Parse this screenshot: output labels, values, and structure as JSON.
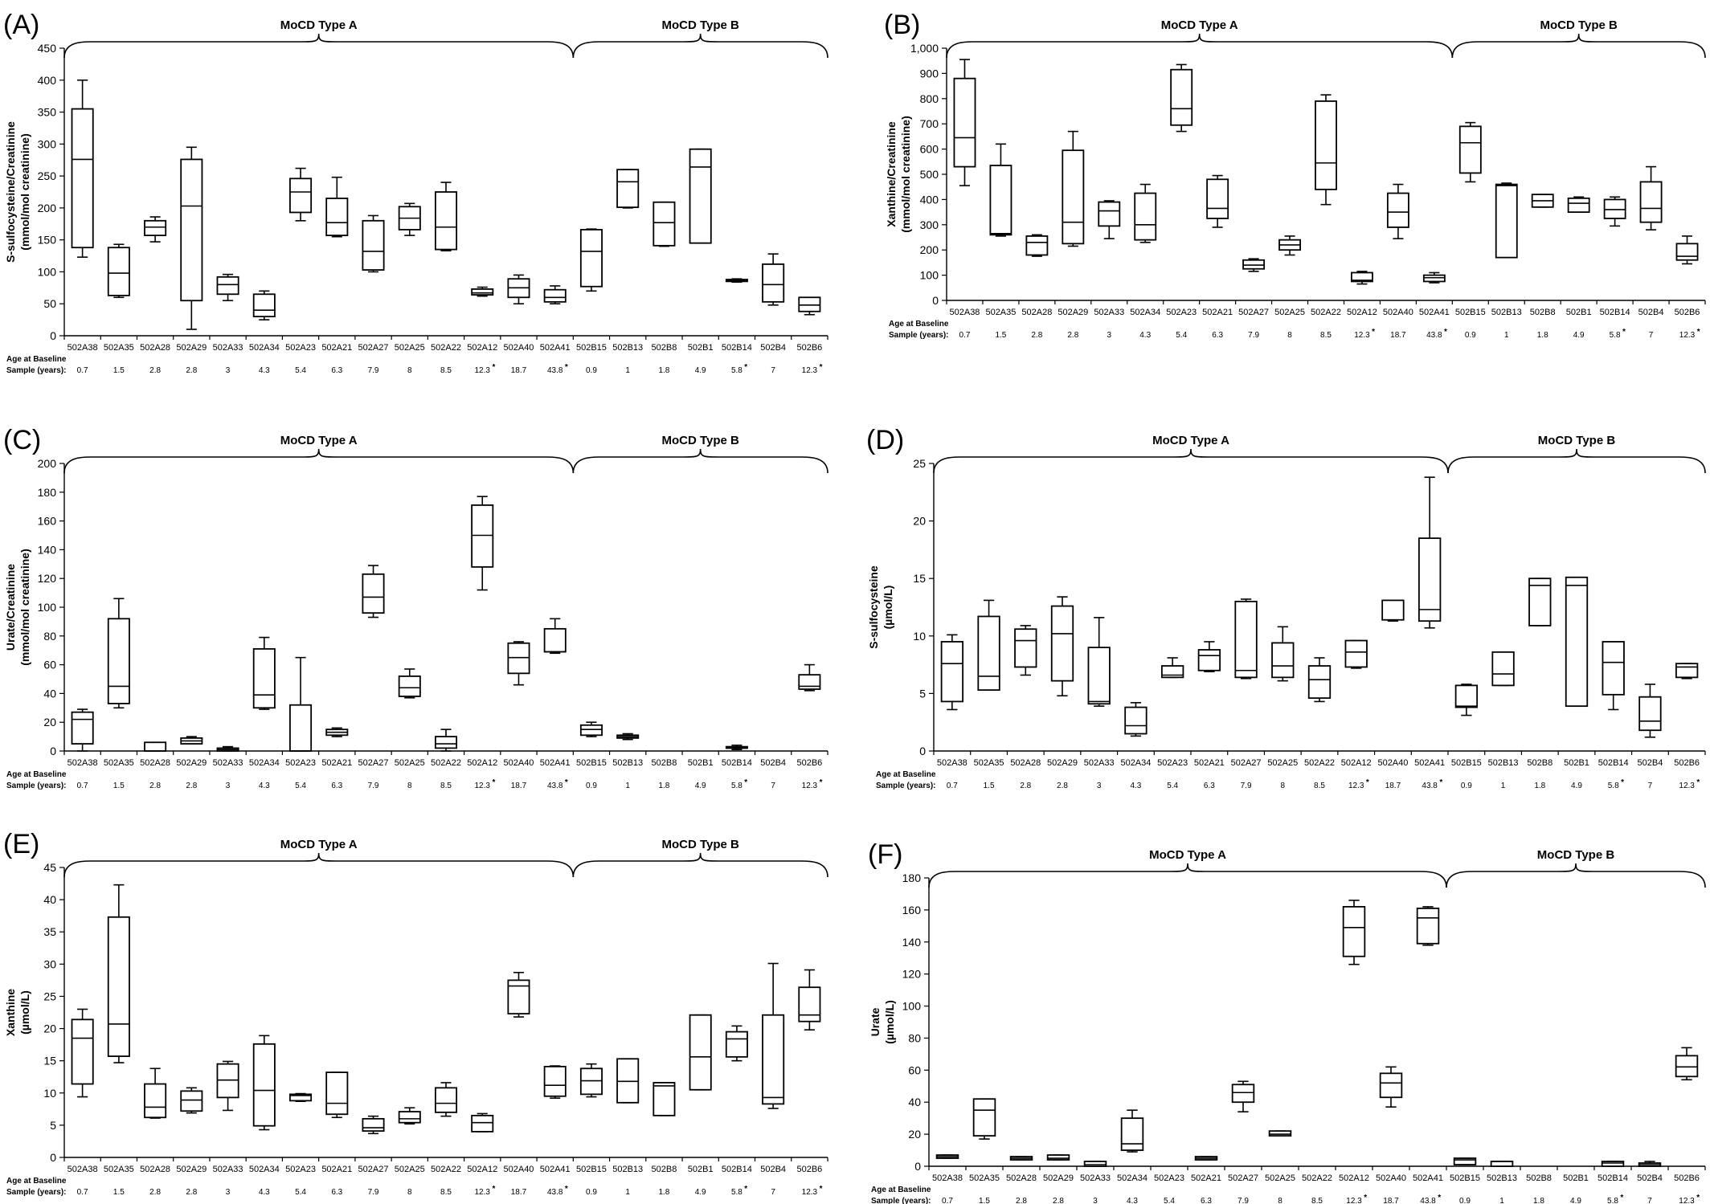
{
  "figure": {
    "age_label_line1": "Age at Baseline",
    "age_label_line2": "Sample (years):",
    "type_a_label": "MoCD Type A",
    "type_b_label": "MoCD Type B"
  },
  "chart_data": [
    {
      "panel": "(A)",
      "type": "box",
      "ylabel": [
        "S-sulfocysteine/Creatinine",
        "(mmol/mol creatinine)"
      ],
      "ylim": [
        0,
        450
      ],
      "yticks": [
        0,
        50,
        100,
        150,
        200,
        250,
        300,
        350,
        400,
        450
      ],
      "categories": [
        "502A38",
        "502A35",
        "502A28",
        "502A29",
        "502A33",
        "502A34",
        "502A23",
        "502A21",
        "502A27",
        "502A25",
        "502A22",
        "502A12",
        "502A40",
        "502A41",
        "502B15",
        "502B13",
        "502B8",
        "502B1",
        "502B14",
        "502B4",
        "502B6"
      ],
      "ages": [
        "0.7",
        "1.5",
        "2.8",
        "2.8",
        "3",
        "4.3",
        "5.4",
        "6.3",
        "7.9",
        "8",
        "8.5",
        "12.3",
        "18.7",
        "43.8",
        "0.9",
        "1",
        "1.8",
        "4.9",
        "5.8",
        "7",
        "12.3"
      ],
      "age_asterisk": [
        11,
        13,
        18,
        20
      ],
      "boxes": [
        [
          123,
          138,
          276,
          355,
          400
        ],
        [
          60,
          63,
          98,
          138,
          143
        ],
        [
          147,
          157,
          170,
          180,
          186
        ],
        [
          10,
          55,
          203,
          276,
          295
        ],
        [
          55,
          65,
          80,
          92,
          96
        ],
        [
          25,
          30,
          40,
          65,
          70
        ],
        [
          180,
          193,
          225,
          246,
          262
        ],
        [
          155,
          157,
          177,
          215,
          248
        ],
        [
          100,
          103,
          132,
          180,
          188
        ],
        [
          157,
          166,
          184,
          202,
          207
        ],
        [
          133,
          135,
          170,
          225,
          240
        ],
        [
          62,
          64,
          67,
          73,
          76
        ],
        [
          50,
          60,
          75,
          89,
          95
        ],
        [
          50,
          53,
          60,
          72,
          78
        ],
        [
          70,
          77,
          132,
          166,
          167
        ],
        [
          200,
          201,
          241,
          260,
          260
        ],
        [
          140,
          141,
          177,
          209,
          209
        ],
        [
          145,
          145,
          264,
          292,
          292
        ],
        [
          84,
          85,
          86,
          88,
          89
        ],
        [
          48,
          53,
          80,
          112,
          128
        ],
        [
          33,
          38,
          48,
          60,
          60
        ]
      ]
    },
    {
      "panel": "(B)",
      "type": "box",
      "ylabel": [
        "Xanthine/Creatinine",
        "(mmol/mol creatinine)"
      ],
      "ylim": [
        0,
        1000
      ],
      "yticks": [
        0,
        100,
        200,
        300,
        400,
        500,
        600,
        700,
        800,
        900,
        1000
      ],
      "ytick_labels": [
        "0",
        "100",
        "200",
        "300",
        "400",
        "500",
        "600",
        "700",
        "800",
        "900",
        "1,000"
      ],
      "categories": [
        "502A38",
        "502A35",
        "502A28",
        "502A29",
        "502A33",
        "502A34",
        "502A23",
        "502A21",
        "502A27",
        "502A25",
        "502A22",
        "502A12",
        "502A40",
        "502A41",
        "502B15",
        "502B13",
        "502B8",
        "502B1",
        "502B14",
        "502B4",
        "502B6"
      ],
      "ages": [
        "0.7",
        "1.5",
        "2.8",
        "2.8",
        "3",
        "4.3",
        "5.4",
        "6.3",
        "7.9",
        "8",
        "8.5",
        "12.3",
        "18.7",
        "43.8",
        "0.9",
        "1",
        "1.8",
        "4.9",
        "5.8",
        "7",
        "12.3"
      ],
      "age_asterisk": [
        11,
        13,
        18,
        20
      ],
      "boxes": [
        [
          455,
          530,
          645,
          880,
          955
        ],
        [
          255,
          260,
          265,
          535,
          620
        ],
        [
          175,
          180,
          230,
          255,
          260
        ],
        [
          215,
          225,
          310,
          595,
          670
        ],
        [
          245,
          295,
          355,
          390,
          395
        ],
        [
          230,
          240,
          300,
          425,
          460
        ],
        [
          670,
          695,
          760,
          915,
          935
        ],
        [
          290,
          325,
          365,
          480,
          495
        ],
        [
          115,
          125,
          140,
          160,
          165
        ],
        [
          180,
          200,
          220,
          240,
          255
        ],
        [
          380,
          440,
          545,
          790,
          815
        ],
        [
          65,
          75,
          80,
          110,
          115
        ],
        [
          245,
          290,
          350,
          425,
          460
        ],
        [
          70,
          75,
          90,
          100,
          110
        ],
        [
          470,
          505,
          625,
          690,
          705
        ],
        [
          170,
          170,
          455,
          460,
          465
        ],
        [
          370,
          370,
          395,
          420,
          420
        ],
        [
          350,
          350,
          385,
          405,
          410
        ],
        [
          295,
          325,
          360,
          400,
          410
        ],
        [
          280,
          310,
          365,
          470,
          530
        ],
        [
          145,
          160,
          175,
          225,
          255
        ]
      ]
    },
    {
      "panel": "(C)",
      "type": "box",
      "ylabel": [
        "Urate/Creatinine",
        "(mmol/mol creatinine)"
      ],
      "ylim": [
        0,
        200
      ],
      "yticks": [
        0,
        20,
        40,
        60,
        80,
        100,
        120,
        140,
        160,
        180,
        200
      ],
      "categories": [
        "502A38",
        "502A35",
        "502A28",
        "502A29",
        "502A33",
        "502A34",
        "502A23",
        "502A21",
        "502A27",
        "502A25",
        "502A22",
        "502A12",
        "502A40",
        "502A41",
        "502B15",
        "502B13",
        "502B8",
        "502B1",
        "502B14",
        "502B4",
        "502B6"
      ],
      "ages": [
        "0.7",
        "1.5",
        "2.8",
        "2.8",
        "3",
        "4.3",
        "5.4",
        "6.3",
        "7.9",
        "8",
        "8.5",
        "12.3",
        "18.7",
        "43.8",
        "0.9",
        "1",
        "1.8",
        "4.9",
        "5.8",
        "7",
        "12.3"
      ],
      "age_asterisk": [
        11,
        13,
        18,
        20
      ],
      "boxes": [
        [
          0,
          5,
          22,
          27,
          29
        ],
        [
          30,
          33,
          45,
          92,
          106
        ],
        [
          0,
          0,
          0,
          6,
          6
        ],
        [
          5,
          5,
          7,
          9,
          10
        ],
        [
          0,
          0,
          1,
          2,
          3
        ],
        [
          29,
          30,
          39,
          71,
          79
        ],
        [
          0,
          0,
          0,
          32,
          65
        ],
        [
          10,
          11,
          13,
          15,
          16
        ],
        [
          93,
          96,
          107,
          123,
          129
        ],
        [
          37,
          38,
          44,
          52,
          57
        ],
        [
          0,
          2,
          5,
          10,
          15
        ],
        [
          112,
          128,
          150,
          171,
          177
        ],
        [
          46,
          54,
          65,
          75,
          76
        ],
        [
          68,
          69,
          69,
          85,
          92
        ],
        [
          10,
          11,
          15,
          18,
          20
        ],
        [
          8,
          9,
          10,
          11,
          12
        ],
        [
          0,
          0,
          0,
          0,
          0
        ],
        [
          0,
          0,
          0,
          0,
          0
        ],
        [
          1,
          2,
          2,
          3,
          4
        ],
        [
          0,
          0,
          0,
          0,
          0
        ],
        [
          42,
          43,
          45,
          53,
          60
        ]
      ]
    },
    {
      "panel": "(D)",
      "type": "box",
      "ylabel": [
        "S-sulfocysteine",
        "(µmol/L)"
      ],
      "ylim": [
        0,
        25
      ],
      "yticks": [
        0,
        5,
        10,
        15,
        20,
        25
      ],
      "categories": [
        "502A38",
        "502A35",
        "502A28",
        "502A29",
        "502A33",
        "502A34",
        "502A23",
        "502A21",
        "502A27",
        "502A25",
        "502A22",
        "502A12",
        "502A40",
        "502A41",
        "502B15",
        "502B13",
        "502B8",
        "502B1",
        "502B14",
        "502B4",
        "502B6"
      ],
      "ages": [
        "0.7",
        "1.5",
        "2.8",
        "2.8",
        "3",
        "4.3",
        "5.4",
        "6.3",
        "7.9",
        "8",
        "8.5",
        "12.3",
        "18.7",
        "43.8",
        "0.9",
        "1",
        "1.8",
        "4.9",
        "5.8",
        "7",
        "12.3"
      ],
      "age_asterisk": [
        11,
        13,
        18,
        20
      ],
      "boxes": [
        [
          3.6,
          4.3,
          7.6,
          9.5,
          10.1
        ],
        [
          5.3,
          5.3,
          6.5,
          11.7,
          13.1
        ],
        [
          6.6,
          7.3,
          9.6,
          10.6,
          10.9
        ],
        [
          4.8,
          6.1,
          10.2,
          12.6,
          13.4
        ],
        [
          3.9,
          4.1,
          4.3,
          9.0,
          11.6
        ],
        [
          1.3,
          1.5,
          2.2,
          3.8,
          4.2
        ],
        [
          6.4,
          6.4,
          6.6,
          7.4,
          8.1
        ],
        [
          6.9,
          7.0,
          8.3,
          8.8,
          9.5
        ],
        [
          6.3,
          6.4,
          7.0,
          13.0,
          13.2
        ],
        [
          6.1,
          6.4,
          7.4,
          9.4,
          10.8
        ],
        [
          4.3,
          4.6,
          6.2,
          7.4,
          8.1
        ],
        [
          7.2,
          7.3,
          8.6,
          9.6,
          9.6
        ],
        [
          11.3,
          11.4,
          11.4,
          13.1,
          13.1
        ],
        [
          10.7,
          11.3,
          12.3,
          18.5,
          23.8
        ],
        [
          3.1,
          3.8,
          3.9,
          5.7,
          5.8
        ],
        [
          5.7,
          5.7,
          6.7,
          8.6,
          8.6
        ],
        [
          10.9,
          10.9,
          14.4,
          15.0,
          15.0
        ],
        [
          3.9,
          3.9,
          14.4,
          15.1,
          15.1
        ],
        [
          3.6,
          4.9,
          7.7,
          9.5,
          9.5
        ],
        [
          1.2,
          1.8,
          2.6,
          4.7,
          5.8
        ],
        [
          6.3,
          6.4,
          7.3,
          7.6,
          7.6
        ]
      ]
    },
    {
      "panel": "(E)",
      "type": "box",
      "ylabel": [
        "Xanthine",
        "(µmol/L)"
      ],
      "ylim": [
        0,
        45
      ],
      "yticks": [
        0,
        5,
        10,
        15,
        20,
        25,
        30,
        35,
        40,
        45
      ],
      "categories": [
        "502A38",
        "502A35",
        "502A28",
        "502A29",
        "502A33",
        "502A34",
        "502A23",
        "502A21",
        "502A27",
        "502A25",
        "502A22",
        "502A12",
        "502A40",
        "502A41",
        "502B15",
        "502B13",
        "502B8",
        "502B1",
        "502B14",
        "502B4",
        "502B6"
      ],
      "ages": [
        "0.7",
        "1.5",
        "2.8",
        "2.8",
        "3",
        "4.3",
        "5.4",
        "6.3",
        "7.9",
        "8",
        "8.5",
        "12.3",
        "18.7",
        "43.8",
        "0.9",
        "1",
        "1.8",
        "4.9",
        "5.8",
        "7",
        "12.3"
      ],
      "age_asterisk": [
        11,
        13,
        18,
        20
      ],
      "boxes": [
        [
          9.4,
          11.4,
          18.5,
          21.4,
          23.0
        ],
        [
          14.7,
          15.7,
          20.7,
          37.3,
          42.3
        ],
        [
          6.1,
          6.2,
          7.8,
          11.4,
          13.8
        ],
        [
          6.9,
          7.2,
          8.9,
          10.3,
          10.8
        ],
        [
          7.3,
          9.3,
          12.0,
          14.5,
          14.9
        ],
        [
          4.3,
          4.9,
          10.4,
          17.6,
          18.9
        ],
        [
          8.7,
          8.8,
          9.6,
          9.8,
          9.9
        ],
        [
          6.2,
          6.7,
          8.4,
          13.2,
          13.2
        ],
        [
          3.7,
          4.1,
          4.6,
          6.0,
          6.4
        ],
        [
          5.2,
          5.4,
          6.0,
          7.1,
          7.7
        ],
        [
          6.4,
          7.0,
          8.4,
          10.8,
          11.6
        ],
        [
          4.0,
          4.0,
          5.4,
          6.5,
          6.8
        ],
        [
          21.8,
          22.3,
          26.6,
          27.5,
          28.7
        ],
        [
          9.2,
          9.5,
          11.2,
          14.1,
          14.2
        ],
        [
          9.4,
          9.8,
          11.9,
          13.8,
          14.5
        ],
        [
          8.5,
          8.5,
          11.8,
          15.3,
          15.3
        ],
        [
          6.5,
          6.5,
          11.1,
          11.6,
          11.6
        ],
        [
          10.5,
          10.5,
          15.6,
          22.1,
          22.1
        ],
        [
          15.0,
          15.6,
          18.4,
          19.5,
          20.4
        ],
        [
          7.6,
          8.3,
          9.3,
          22.1,
          30.1
        ],
        [
          19.8,
          21.1,
          22.1,
          26.4,
          29.1
        ]
      ]
    },
    {
      "panel": "(F)",
      "type": "box",
      "ylabel": [
        "Urate",
        "(µmol/L)"
      ],
      "ylim": [
        0,
        180
      ],
      "yticks": [
        0,
        20,
        40,
        60,
        80,
        100,
        120,
        140,
        160,
        180
      ],
      "categories": [
        "502A38",
        "502A35",
        "502A28",
        "502A29",
        "502A33",
        "502A34",
        "502A23",
        "502A21",
        "502A27",
        "502A25",
        "502A22",
        "502A12",
        "502A40",
        "502A41",
        "502B15",
        "502B13",
        "502B8",
        "502B1",
        "502B14",
        "502B4",
        "502B6"
      ],
      "ages": [
        "0.7",
        "1.5",
        "2.8",
        "2.8",
        "3",
        "4.3",
        "5.4",
        "6.3",
        "7.9",
        "8",
        "8.5",
        "12.3",
        "18.7",
        "43.8",
        "0.9",
        "1",
        "1.8",
        "4.9",
        "5.8",
        "7",
        "12.3"
      ],
      "age_asterisk": [
        11,
        13,
        18,
        20
      ],
      "boxes": [
        [
          5,
          5,
          6,
          7,
          7
        ],
        [
          17,
          19,
          35,
          42,
          42
        ],
        [
          4,
          4,
          5,
          6,
          6
        ],
        [
          4,
          4,
          5,
          7,
          7
        ],
        [
          0,
          0,
          1,
          3,
          3
        ],
        [
          9,
          10,
          14,
          30,
          35
        ],
        [
          0,
          0,
          0,
          0,
          0
        ],
        [
          4,
          4,
          5,
          6,
          6
        ],
        [
          34,
          40,
          46,
          51,
          53
        ],
        [
          19,
          19,
          20,
          22,
          22
        ],
        [
          0,
          0,
          0,
          0,
          0
        ],
        [
          126,
          131,
          149,
          162,
          166
        ],
        [
          37,
          43,
          52,
          58,
          62
        ],
        [
          138,
          139,
          155,
          161,
          162
        ],
        [
          1,
          1,
          4,
          5,
          5
        ],
        [
          0,
          0,
          3,
          3,
          3
        ],
        [
          0,
          0,
          0,
          0,
          0
        ],
        [
          0,
          0,
          0,
          0,
          0
        ],
        [
          0,
          0,
          2,
          3,
          3
        ],
        [
          0,
          0,
          1,
          2,
          3
        ],
        [
          54,
          56,
          62,
          69,
          74
        ]
      ]
    }
  ]
}
